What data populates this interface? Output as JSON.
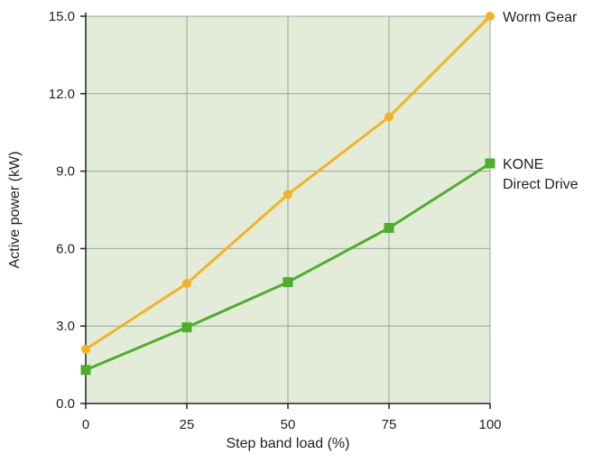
{
  "chart_data": {
    "type": "line",
    "title": "",
    "xlabel": "Step band load (%)",
    "ylabel": "Active power (kW)",
    "x": [
      0,
      25,
      50,
      75,
      100
    ],
    "xticks": [
      "0",
      "25",
      "50",
      "75",
      "100"
    ],
    "yticks": [
      "0.0",
      "3.0",
      "6.0",
      "9.0",
      "12.0",
      "15.0"
    ],
    "xlim": [
      0,
      100
    ],
    "ylim": [
      0,
      15
    ],
    "grid": true,
    "plot_background": "#e3ecd8",
    "grid_color": "#9aa49a",
    "series": [
      {
        "name": "Worm Gear",
        "label_lines": [
          "Worm Gear"
        ],
        "values": [
          2.1,
          4.65,
          8.1,
          11.1,
          15.0
        ],
        "color": "#f5b223",
        "marker": "circle"
      },
      {
        "name": "KONE Direct Drive",
        "label_lines": [
          "KONE",
          "Direct Drive"
        ],
        "values": [
          1.3,
          2.95,
          4.7,
          6.8,
          9.3
        ],
        "color": "#4caf2c",
        "marker": "square"
      }
    ]
  }
}
